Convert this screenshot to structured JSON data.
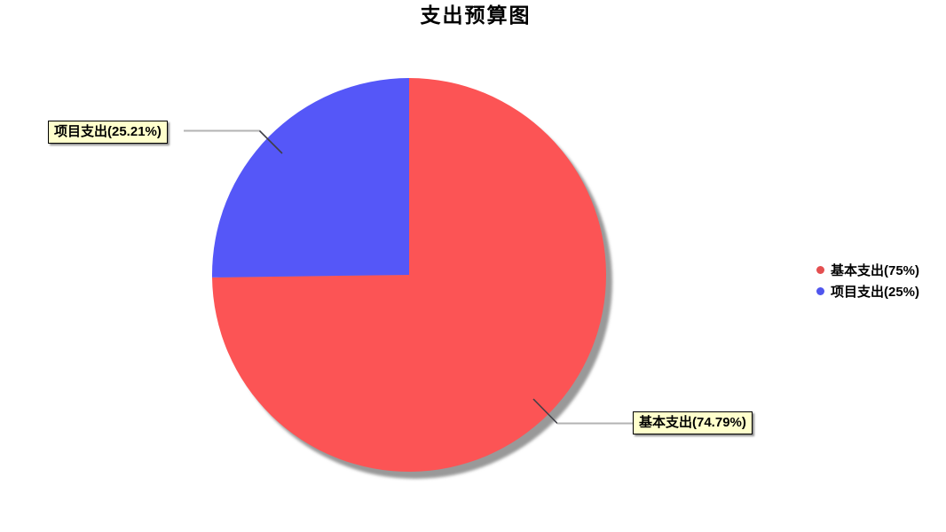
{
  "title": "支出预算图",
  "chart_data": {
    "type": "pie",
    "title": "支出预算图",
    "categories": [
      "基本支出",
      "项目支出"
    ],
    "values": [
      74.79,
      25.21
    ],
    "unit": "%",
    "colors": [
      "#FC5455",
      "#5557F8"
    ],
    "start_angle_deg": 90,
    "direction": "clockwise",
    "legend_position": "right",
    "legend": [
      {
        "label": "基本支出(75%)",
        "color": "#E44F50"
      },
      {
        "label": "项目支出(25%)",
        "color": "#5056EE"
      }
    ],
    "callouts": [
      {
        "slice": "基本支出",
        "text": "基本支出(74.79%)"
      },
      {
        "slice": "项目支出",
        "text": "项目支出(25.21%)"
      }
    ]
  },
  "colors": {
    "background": "#FFFFFF",
    "callout_bg": "#FFFFCC",
    "callout_border": "#000000",
    "leader_line": "#B3B3B3",
    "leader_line_dark": "#3F3F46",
    "pie_shadow": "#999999"
  }
}
